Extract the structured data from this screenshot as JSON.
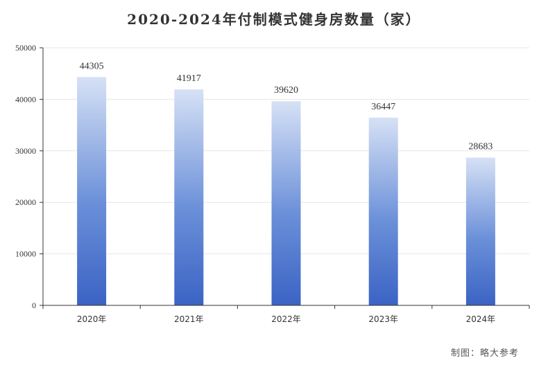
{
  "title": "2020-2024年付制模式健身房数量（家）",
  "source": "制图：略大参考",
  "chart_data": {
    "type": "bar",
    "title": "2020-2024年付制模式健身房数量（家）",
    "xlabel": "",
    "ylabel": "",
    "categories": [
      "2020年",
      "2021年",
      "2022年",
      "2023年",
      "2024年"
    ],
    "values": [
      44305,
      41917,
      39620,
      36447,
      28683
    ],
    "data_labels": [
      "44305",
      "41917",
      "39620",
      "36447",
      "28683"
    ],
    "ylim": [
      0,
      50000
    ],
    "yticks": [
      0,
      10000,
      20000,
      30000,
      40000,
      50000
    ],
    "ytick_labels": [
      "0",
      "10000",
      "20000",
      "30000",
      "40000",
      "50000"
    ],
    "grid": true,
    "legend": "none",
    "colors": {
      "bar_top": "#d6e1f5",
      "bar_mid": "#6b90d9",
      "bar_bottom": "#3b63c4",
      "grid": "#e6e6e6",
      "axis": "#333333"
    }
  }
}
